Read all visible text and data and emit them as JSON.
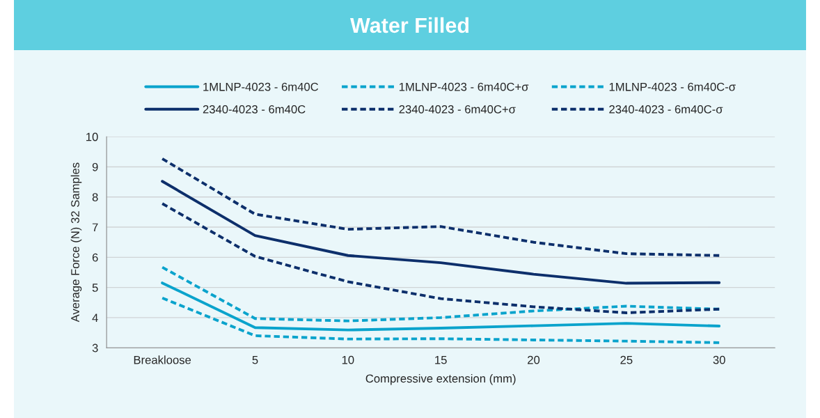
{
  "chart_data": {
    "type": "line",
    "title": "Water Filled",
    "xlabel": "Compressive extension (mm)",
    "ylabel": "Average Force (N) 32 Samples",
    "categories": [
      "Breakloose",
      "5",
      "10",
      "15",
      "20",
      "25",
      "30"
    ],
    "series": [
      {
        "name": "1MLNP-4023 - 6m40C",
        "color": "#0aa3cc",
        "line_style": "solid",
        "values": [
          5.15,
          3.67,
          3.59,
          3.65,
          3.73,
          3.81,
          3.72
        ]
      },
      {
        "name": "1MLNP-4023 - 6m40C+σ",
        "color": "#0aa3cc",
        "line_style": "dashed",
        "values": [
          5.67,
          3.97,
          3.89,
          4.0,
          4.22,
          4.38,
          4.28
        ]
      },
      {
        "name": "1MLNP-4023 - 6m40C-σ",
        "color": "#0aa3cc",
        "line_style": "dashed",
        "values": [
          4.65,
          3.4,
          3.29,
          3.3,
          3.26,
          3.22,
          3.17
        ]
      },
      {
        "name": "2340-4023 - 6m40C",
        "color": "#0d2f6b",
        "line_style": "solid",
        "values": [
          8.52,
          6.72,
          6.06,
          5.82,
          5.44,
          5.14,
          5.16
        ]
      },
      {
        "name": "2340-4023 - 6m40C+σ",
        "color": "#0d2f6b",
        "line_style": "dashed",
        "values": [
          9.27,
          7.43,
          6.93,
          7.02,
          6.5,
          6.12,
          6.06
        ]
      },
      {
        "name": "2340-4023 - 6m40C-σ",
        "color": "#0d2f6b",
        "line_style": "dashed",
        "values": [
          7.78,
          6.03,
          5.19,
          4.63,
          4.36,
          4.16,
          4.28
        ]
      }
    ],
    "ylim": [
      3,
      10
    ],
    "yticks": [
      3,
      4,
      5,
      6,
      7,
      8,
      9,
      10
    ],
    "grid": "y",
    "legend": "top",
    "marker": "none"
  }
}
